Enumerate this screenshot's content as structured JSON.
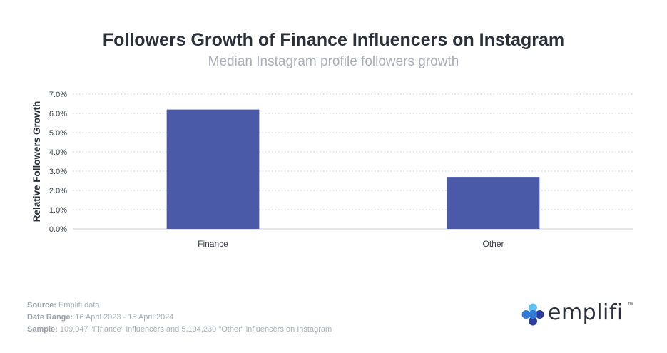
{
  "title": "Followers Growth of Finance Influencers on Instagram",
  "subtitle": "Median Instagram profile followers growth",
  "chart_data": {
    "type": "bar",
    "categories": [
      "Finance",
      "Other"
    ],
    "values": [
      6.2,
      2.7
    ],
    "ylabel": "Relative Followers Growth",
    "xlabel": "",
    "ylim": [
      0,
      7
    ],
    "yticks": [
      "0.0%",
      "1.0%",
      "2.0%",
      "3.0%",
      "4.0%",
      "5.0%",
      "6.0%",
      "7.0%"
    ],
    "grid": true,
    "bar_color": "#4a5aa8"
  },
  "footer": {
    "source_label": "Source:",
    "source": "Emplifi data",
    "date_label": "Date Range:",
    "date": "16 April 2023 - 15 April 2024",
    "sample_label": "Sample:",
    "sample": "109,047 \"Finance\" influencers and 5,194,230 \"Other\" influencers on Instagram"
  },
  "logo": {
    "text": "emplifi",
    "tm": "™"
  },
  "colors": {
    "title": "#2b2f3a",
    "muted": "#a9aeb8",
    "logo_blue": "#2f79d9",
    "logo_dark": "#2e3d99",
    "logo_light": "#5fc2f0"
  }
}
